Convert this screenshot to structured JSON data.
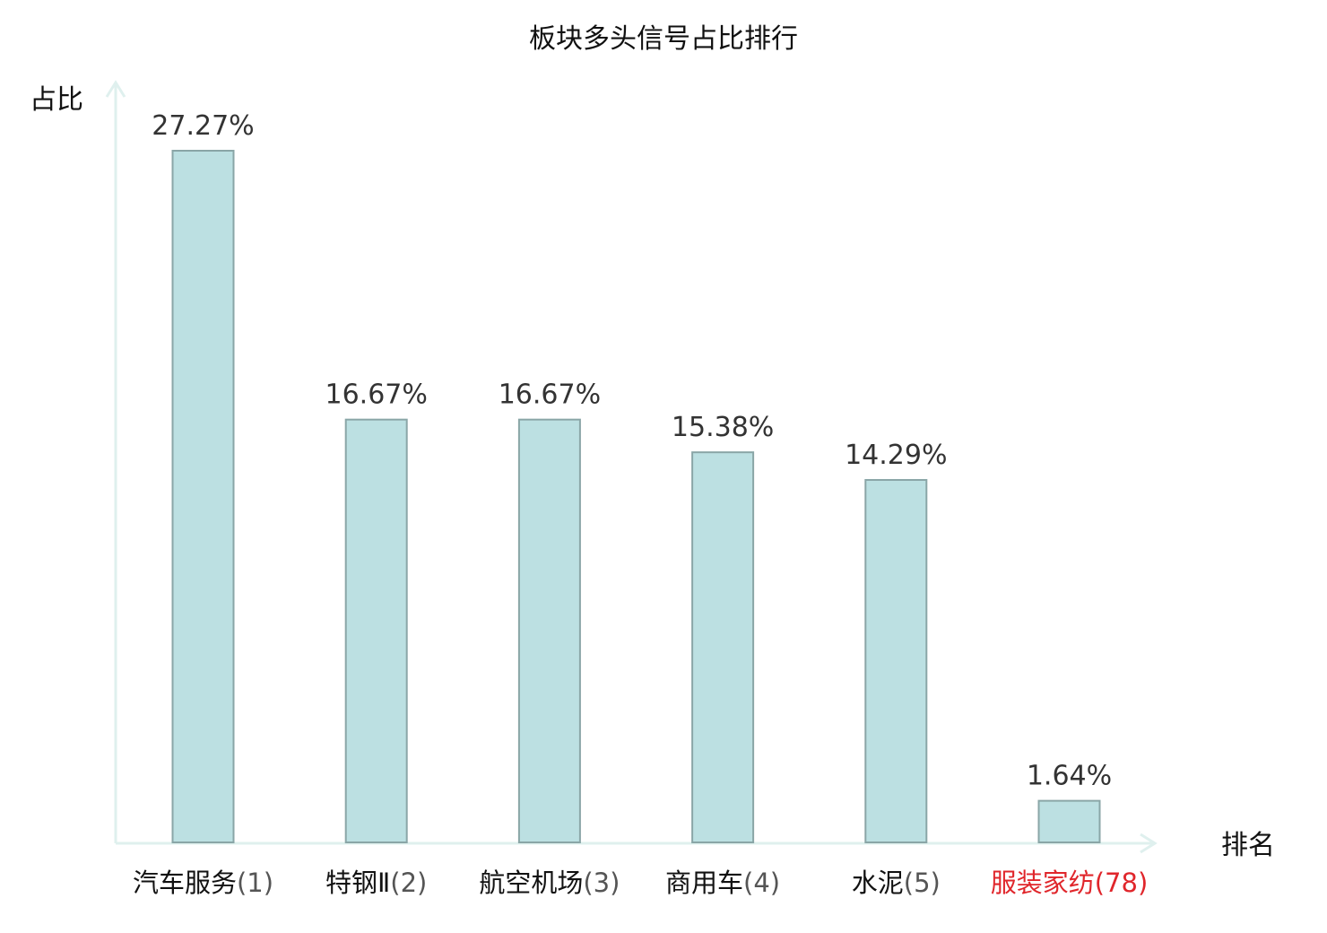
{
  "chart_data": {
    "type": "bar",
    "title": "板块多头信号占比排行",
    "ylabel": "占比",
    "xlabel": "排名",
    "categories": [
      "汽车服务",
      "特钢Ⅱ",
      "航空机场",
      "商用车",
      "水泥",
      "服装家纺"
    ],
    "ranks": [
      "(1)",
      "(2)",
      "(3)",
      "(4)",
      "(5)",
      "(78)"
    ],
    "values": [
      27.27,
      16.67,
      16.67,
      15.38,
      14.29,
      1.64
    ],
    "value_labels": [
      "27.27%",
      "16.67%",
      "16.67%",
      "15.38%",
      "14.29%",
      "1.64%"
    ],
    "highlight_index": 5,
    "ylim": [
      0,
      27.27
    ],
    "grid": false,
    "legend": "none",
    "colors": {
      "bar_fill": "#bce0e2",
      "bar_stroke": "#8aa6a7",
      "axis": "#dff0ee",
      "text": "#111111",
      "value_text": "#333333",
      "rank_text": "#555555",
      "highlight": "#e0262b"
    }
  }
}
